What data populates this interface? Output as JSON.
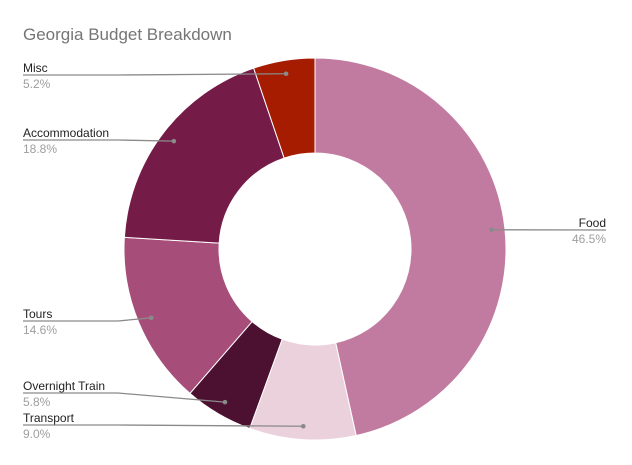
{
  "chart_data": {
    "type": "pie",
    "donut": true,
    "title": "Georgia Budget Breakdown",
    "slices": [
      {
        "label": "Food",
        "value": 46.5,
        "display": "46.5%",
        "color": "#c27ba0"
      },
      {
        "label": "Transport",
        "value": 9.0,
        "display": "9.0%",
        "color": "#ead1dc"
      },
      {
        "label": "Overnight Train",
        "value": 5.8,
        "display": "5.8%",
        "color": "#4c1130"
      },
      {
        "label": "Tours",
        "value": 14.6,
        "display": "14.6%",
        "color": "#a64d79"
      },
      {
        "label": "Accommodation",
        "value": 18.8,
        "display": "18.8%",
        "color": "#741b47"
      },
      {
        "label": "Misc",
        "value": 5.2,
        "display": "5.2%",
        "color": "#a61c00"
      }
    ]
  }
}
